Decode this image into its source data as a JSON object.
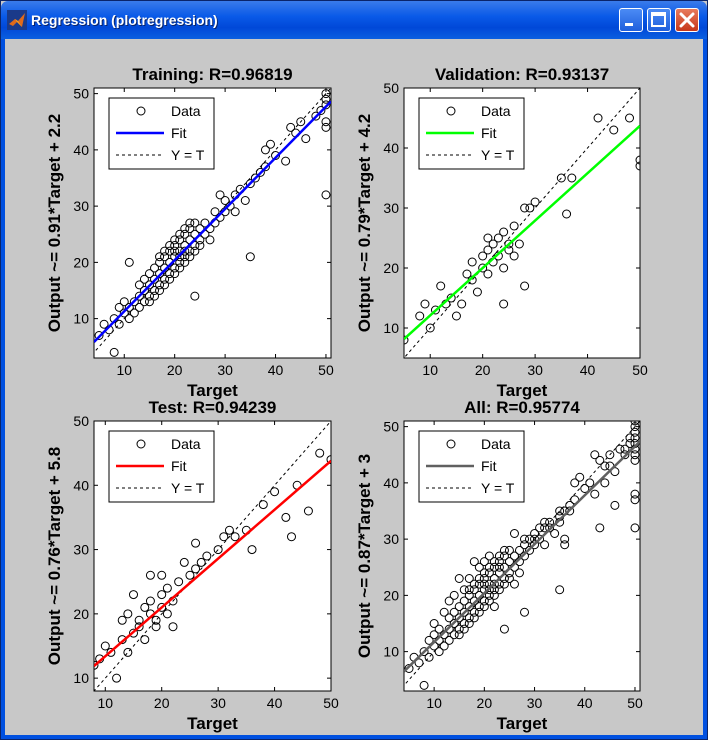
{
  "window": {
    "title": "Regression (plotregression)",
    "icon": "matlab-logo-icon",
    "controls": [
      "minimize-icon",
      "maximize-icon",
      "close-icon"
    ]
  },
  "colors": {
    "training_fit": "#0000ff",
    "validation_fit": "#00ff00",
    "test_fit": "#ff0000",
    "all_fit": "#606060",
    "background": "#c8c8c8"
  },
  "chart_data": [
    {
      "type": "scatter",
      "title": "Training: R=0.96819",
      "xlabel": "Target",
      "ylabel": "Output ~= 0.91*Target + 2.2",
      "xlim": [
        4,
        51
      ],
      "ylim": [
        3,
        51
      ],
      "xticks": [
        10,
        20,
        30,
        40,
        50
      ],
      "yticks": [
        10,
        20,
        30,
        40,
        50
      ],
      "fit": {
        "slope": 0.91,
        "intercept": 2.2
      },
      "legend": {
        "position": "top-left",
        "entries": [
          "Data",
          "Fit",
          "Y = T"
        ]
      },
      "points": [
        [
          5,
          7
        ],
        [
          6,
          9
        ],
        [
          7,
          8
        ],
        [
          8,
          10
        ],
        [
          8,
          4
        ],
        [
          9,
          12
        ],
        [
          9,
          9
        ],
        [
          10,
          11
        ],
        [
          10,
          13
        ],
        [
          11,
          10
        ],
        [
          11,
          12
        ],
        [
          12,
          13
        ],
        [
          12,
          11
        ],
        [
          13,
          14
        ],
        [
          13,
          16
        ],
        [
          13,
          12
        ],
        [
          14,
          13
        ],
        [
          14,
          15
        ],
        [
          14,
          17
        ],
        [
          15,
          14
        ],
        [
          15,
          16
        ],
        [
          15,
          18
        ],
        [
          15,
          13
        ],
        [
          16,
          15
        ],
        [
          16,
          17
        ],
        [
          16,
          19
        ],
        [
          16,
          14
        ],
        [
          17,
          16
        ],
        [
          17,
          18
        ],
        [
          17,
          20
        ],
        [
          17,
          15
        ],
        [
          17,
          21
        ],
        [
          18,
          17
        ],
        [
          18,
          19
        ],
        [
          18,
          21
        ],
        [
          18,
          16
        ],
        [
          18,
          22
        ],
        [
          19,
          18
        ],
        [
          19,
          20
        ],
        [
          19,
          22
        ],
        [
          19,
          17
        ],
        [
          19,
          23
        ],
        [
          20,
          19
        ],
        [
          20,
          21
        ],
        [
          20,
          23
        ],
        [
          20,
          18
        ],
        [
          20,
          24
        ],
        [
          20,
          22
        ],
        [
          21,
          20
        ],
        [
          21,
          22
        ],
        [
          21,
          24
        ],
        [
          21,
          19
        ],
        [
          21,
          25
        ],
        [
          21,
          21
        ],
        [
          22,
          21
        ],
        [
          22,
          23
        ],
        [
          22,
          25
        ],
        [
          22,
          20
        ],
        [
          22,
          26
        ],
        [
          22,
          22
        ],
        [
          23,
          22
        ],
        [
          23,
          24
        ],
        [
          23,
          26
        ],
        [
          23,
          21
        ],
        [
          23,
          27
        ],
        [
          24,
          23
        ],
        [
          24,
          25
        ],
        [
          24,
          22
        ],
        [
          24,
          27
        ],
        [
          25,
          24
        ],
        [
          25,
          26
        ],
        [
          25,
          23
        ],
        [
          26,
          25
        ],
        [
          26,
          27
        ],
        [
          27,
          26
        ],
        [
          27,
          24
        ],
        [
          28,
          27
        ],
        [
          28,
          29
        ],
        [
          29,
          28
        ],
        [
          30,
          31
        ],
        [
          30,
          29
        ],
        [
          31,
          30
        ],
        [
          32,
          32
        ],
        [
          32,
          29
        ],
        [
          33,
          33
        ],
        [
          34,
          31
        ],
        [
          35,
          34
        ],
        [
          36,
          35
        ],
        [
          37,
          36
        ],
        [
          38,
          37
        ],
        [
          38,
          40
        ],
        [
          39,
          41
        ],
        [
          40,
          39
        ],
        [
          42,
          38
        ],
        [
          43,
          44
        ],
        [
          44,
          43
        ],
        [
          45,
          45
        ],
        [
          46,
          42
        ],
        [
          48,
          46
        ],
        [
          49,
          47
        ],
        [
          50,
          49
        ],
        [
          50,
          50
        ],
        [
          50,
          45
        ],
        [
          50,
          44
        ],
        [
          50,
          32
        ],
        [
          50,
          48
        ],
        [
          11,
          20
        ],
        [
          24,
          14
        ],
        [
          35,
          21
        ],
        [
          29,
          32
        ]
      ]
    },
    {
      "type": "scatter",
      "title": "Validation: R=0.93137",
      "xlabel": "Target",
      "ylabel": "Output ~= 0.79*Target + 4.2",
      "xlim": [
        5,
        50
      ],
      "ylim": [
        5,
        50
      ],
      "xticks": [
        10,
        20,
        30,
        40,
        50
      ],
      "yticks": [
        10,
        20,
        30,
        40,
        50
      ],
      "fit": {
        "slope": 0.79,
        "intercept": 4.2
      },
      "legend": {
        "position": "top-left",
        "entries": [
          "Data",
          "Fit",
          "Y = T"
        ]
      },
      "points": [
        [
          5,
          8
        ],
        [
          8,
          12
        ],
        [
          9,
          14
        ],
        [
          10,
          10
        ],
        [
          11,
          13
        ],
        [
          12,
          17
        ],
        [
          13,
          14
        ],
        [
          14,
          15
        ],
        [
          15,
          12
        ],
        [
          16,
          14
        ],
        [
          17,
          19
        ],
        [
          18,
          18
        ],
        [
          18,
          21
        ],
        [
          19,
          16
        ],
        [
          20,
          20
        ],
        [
          20,
          22
        ],
        [
          21,
          19
        ],
        [
          21,
          23
        ],
        [
          22,
          24
        ],
        [
          22,
          21
        ],
        [
          23,
          25
        ],
        [
          23,
          22
        ],
        [
          24,
          20
        ],
        [
          24,
          26
        ],
        [
          25,
          24
        ],
        [
          25,
          23
        ],
        [
          26,
          27
        ],
        [
          27,
          24
        ],
        [
          28,
          30
        ],
        [
          28,
          17
        ],
        [
          29,
          30
        ],
        [
          30,
          31
        ],
        [
          35,
          35
        ],
        [
          36,
          29
        ],
        [
          37,
          35
        ],
        [
          42,
          45
        ],
        [
          45,
          43
        ],
        [
          48,
          45
        ],
        [
          50,
          38
        ],
        [
          50,
          37
        ],
        [
          24,
          14
        ],
        [
          21,
          25
        ],
        [
          26,
          22
        ]
      ]
    },
    {
      "type": "scatter",
      "title": "Test: R=0.94239",
      "xlabel": "Target",
      "ylabel": "Output ~= 0.76*Target + 5.8",
      "xlim": [
        8,
        50
      ],
      "ylim": [
        8,
        50
      ],
      "xticks": [
        10,
        20,
        30,
        40,
        50
      ],
      "yticks": [
        10,
        20,
        30,
        40,
        50
      ],
      "fit": {
        "slope": 0.76,
        "intercept": 5.8
      },
      "legend": {
        "position": "top-left",
        "entries": [
          "Data",
          "Fit",
          "Y = T"
        ]
      },
      "points": [
        [
          8,
          12
        ],
        [
          9,
          13
        ],
        [
          10,
          15
        ],
        [
          11,
          14
        ],
        [
          12,
          10
        ],
        [
          13,
          16
        ],
        [
          13,
          19
        ],
        [
          14,
          14
        ],
        [
          14,
          20
        ],
        [
          15,
          17
        ],
        [
          15,
          23
        ],
        [
          16,
          18
        ],
        [
          16,
          19
        ],
        [
          17,
          16
        ],
        [
          17,
          21
        ],
        [
          18,
          20
        ],
        [
          18,
          22
        ],
        [
          18,
          26
        ],
        [
          19,
          19
        ],
        [
          19,
          18
        ],
        [
          20,
          21
        ],
        [
          20,
          23
        ],
        [
          20,
          26
        ],
        [
          21,
          20
        ],
        [
          21,
          24
        ],
        [
          22,
          22
        ],
        [
          22,
          18
        ],
        [
          23,
          25
        ],
        [
          24,
          28
        ],
        [
          25,
          26
        ],
        [
          26,
          27
        ],
        [
          26,
          31
        ],
        [
          27,
          28
        ],
        [
          28,
          29
        ],
        [
          30,
          30
        ],
        [
          31,
          32
        ],
        [
          32,
          33
        ],
        [
          33,
          32
        ],
        [
          35,
          33
        ],
        [
          36,
          30
        ],
        [
          38,
          37
        ],
        [
          40,
          39
        ],
        [
          42,
          35
        ],
        [
          43,
          32
        ],
        [
          44,
          40
        ],
        [
          46,
          36
        ],
        [
          48,
          45
        ],
        [
          50,
          44
        ]
      ]
    },
    {
      "type": "scatter",
      "title": "All: R=0.95774",
      "xlabel": "Target",
      "ylabel": "Output ~= 0.87*Target + 3",
      "xlim": [
        4,
        51
      ],
      "ylim": [
        3,
        51
      ],
      "xticks": [
        10,
        20,
        30,
        40,
        50
      ],
      "yticks": [
        10,
        20,
        30,
        40,
        50
      ],
      "fit": {
        "slope": 0.87,
        "intercept": 3.0
      },
      "legend": {
        "position": "top-left",
        "entries": [
          "Data",
          "Fit",
          "Y = T"
        ]
      },
      "points": [
        [
          5,
          7
        ],
        [
          6,
          9
        ],
        [
          7,
          8
        ],
        [
          8,
          10
        ],
        [
          8,
          4
        ],
        [
          9,
          12
        ],
        [
          9,
          9
        ],
        [
          10,
          11
        ],
        [
          10,
          13
        ],
        [
          10,
          15
        ],
        [
          11,
          10
        ],
        [
          11,
          12
        ],
        [
          11,
          14
        ],
        [
          12,
          13
        ],
        [
          12,
          11
        ],
        [
          12,
          17
        ],
        [
          13,
          14
        ],
        [
          13,
          16
        ],
        [
          13,
          12
        ],
        [
          13,
          19
        ],
        [
          14,
          13
        ],
        [
          14,
          15
        ],
        [
          14,
          17
        ],
        [
          14,
          20
        ],
        [
          15,
          14
        ],
        [
          15,
          16
        ],
        [
          15,
          18
        ],
        [
          15,
          13
        ],
        [
          15,
          23
        ],
        [
          16,
          15
        ],
        [
          16,
          17
        ],
        [
          16,
          19
        ],
        [
          16,
          14
        ],
        [
          16,
          21
        ],
        [
          17,
          16
        ],
        [
          17,
          18
        ],
        [
          17,
          20
        ],
        [
          17,
          15
        ],
        [
          17,
          21
        ],
        [
          17,
          23
        ],
        [
          18,
          17
        ],
        [
          18,
          19
        ],
        [
          18,
          21
        ],
        [
          18,
          16
        ],
        [
          18,
          22
        ],
        [
          18,
          26
        ],
        [
          19,
          18
        ],
        [
          19,
          20
        ],
        [
          19,
          22
        ],
        [
          19,
          17
        ],
        [
          19,
          23
        ],
        [
          19,
          25
        ],
        [
          20,
          19
        ],
        [
          20,
          21
        ],
        [
          20,
          23
        ],
        [
          20,
          18
        ],
        [
          20,
          24
        ],
        [
          20,
          22
        ],
        [
          20,
          26
        ],
        [
          21,
          20
        ],
        [
          21,
          22
        ],
        [
          21,
          24
        ],
        [
          21,
          19
        ],
        [
          21,
          25
        ],
        [
          21,
          21
        ],
        [
          21,
          27
        ],
        [
          22,
          21
        ],
        [
          22,
          23
        ],
        [
          22,
          25
        ],
        [
          22,
          20
        ],
        [
          22,
          26
        ],
        [
          22,
          22
        ],
        [
          22,
          18
        ],
        [
          23,
          22
        ],
        [
          23,
          24
        ],
        [
          23,
          26
        ],
        [
          23,
          21
        ],
        [
          23,
          27
        ],
        [
          23,
          25
        ],
        [
          24,
          23
        ],
        [
          24,
          25
        ],
        [
          24,
          22
        ],
        [
          24,
          27
        ],
        [
          24,
          28
        ],
        [
          24,
          14
        ],
        [
          25,
          24
        ],
        [
          25,
          26
        ],
        [
          25,
          23
        ],
        [
          25,
          28
        ],
        [
          26,
          25
        ],
        [
          26,
          27
        ],
        [
          26,
          31
        ],
        [
          26,
          22
        ],
        [
          27,
          26
        ],
        [
          27,
          24
        ],
        [
          27,
          28
        ],
        [
          28,
          27
        ],
        [
          28,
          29
        ],
        [
          28,
          30
        ],
        [
          28,
          17
        ],
        [
          29,
          28
        ],
        [
          29,
          30
        ],
        [
          30,
          31
        ],
        [
          30,
          29
        ],
        [
          30,
          30
        ],
        [
          31,
          30
        ],
        [
          31,
          32
        ],
        [
          32,
          32
        ],
        [
          32,
          29
        ],
        [
          32,
          33
        ],
        [
          33,
          33
        ],
        [
          33,
          32
        ],
        [
          34,
          31
        ],
        [
          35,
          34
        ],
        [
          35,
          33
        ],
        [
          35,
          35
        ],
        [
          35,
          21
        ],
        [
          36,
          35
        ],
        [
          36,
          30
        ],
        [
          36,
          29
        ],
        [
          37,
          36
        ],
        [
          37,
          35
        ],
        [
          38,
          37
        ],
        [
          38,
          40
        ],
        [
          39,
          41
        ],
        [
          40,
          39
        ],
        [
          41,
          40
        ],
        [
          42,
          38
        ],
        [
          42,
          45
        ],
        [
          43,
          44
        ],
        [
          43,
          32
        ],
        [
          44,
          43
        ],
        [
          44,
          40
        ],
        [
          45,
          45
        ],
        [
          45,
          43
        ],
        [
          46,
          42
        ],
        [
          46,
          36
        ],
        [
          47,
          46
        ],
        [
          48,
          46
        ],
        [
          48,
          45
        ],
        [
          49,
          47
        ],
        [
          49,
          48
        ],
        [
          50,
          49
        ],
        [
          50,
          50
        ],
        [
          50,
          45
        ],
        [
          50,
          44
        ],
        [
          50,
          32
        ],
        [
          50,
          48
        ],
        [
          50,
          38
        ],
        [
          50,
          37
        ],
        [
          50,
          47
        ],
        [
          50,
          51
        ],
        [
          50,
          46
        ]
      ]
    }
  ]
}
